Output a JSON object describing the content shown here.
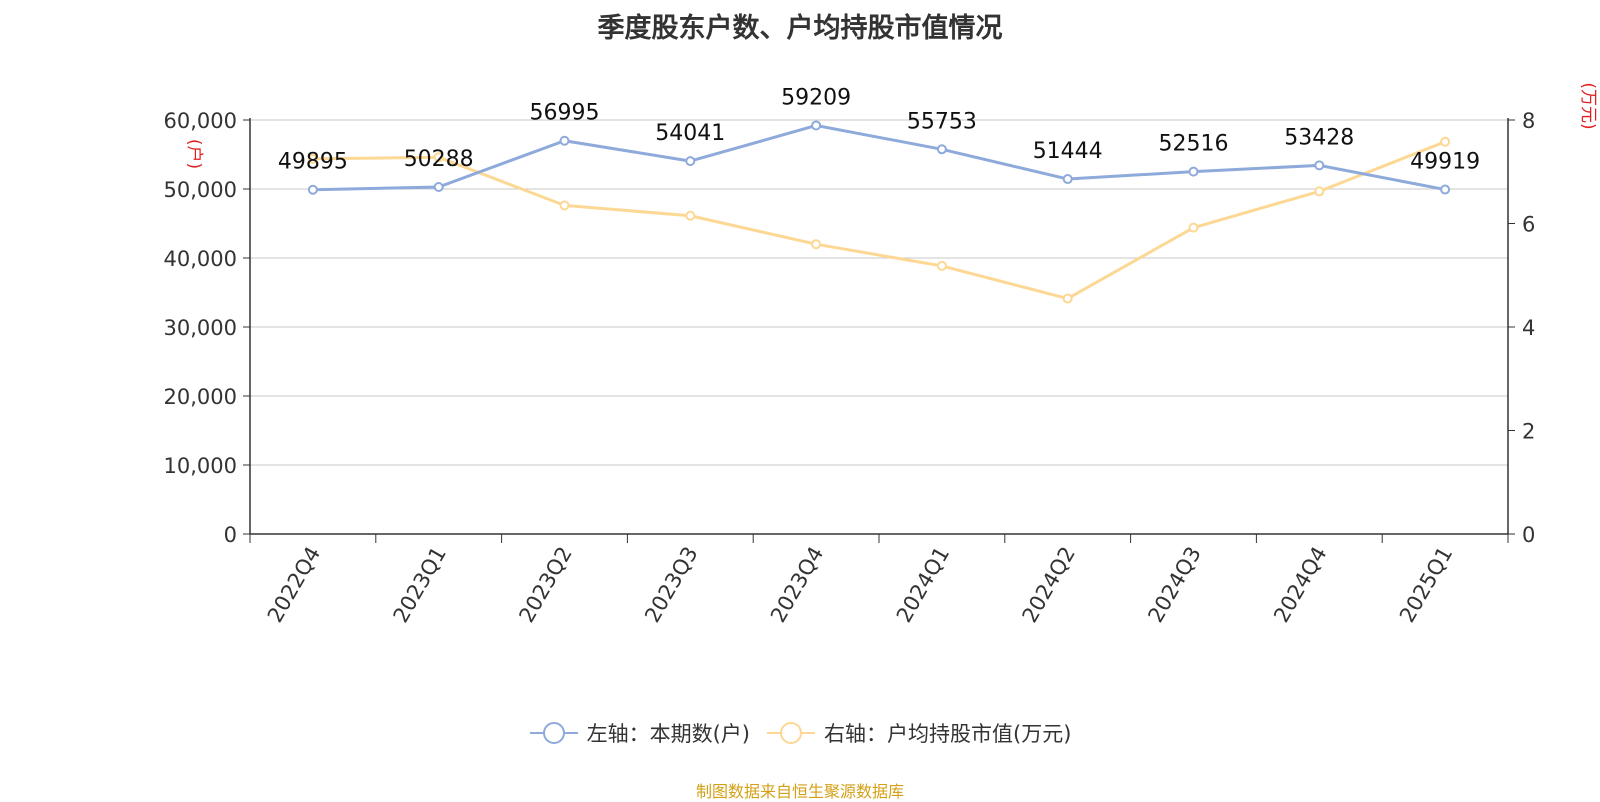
{
  "title": "季度股东户数、户均持股市值情况",
  "source": "制图数据来自恒生聚源数据库",
  "colors": {
    "left_series": "#8eaadb",
    "right_series": "#fcd894",
    "axis_unit": "#e02020",
    "text": "#333333",
    "grid": "#c8c8c8"
  },
  "chart_data": {
    "type": "line",
    "categories": [
      "2022Q4",
      "2023Q1",
      "2023Q2",
      "2023Q3",
      "2023Q4",
      "2024Q1",
      "2024Q2",
      "2024Q3",
      "2024Q4",
      "2025Q1"
    ],
    "series": [
      {
        "name": "左轴：本期数(户)",
        "axis": "left",
        "values": [
          49895,
          50288,
          56995,
          54041,
          59209,
          55753,
          51444,
          52516,
          53428,
          49919
        ]
      },
      {
        "name": "右轴：户均持股市值(万元)",
        "axis": "right",
        "values": [
          7.25,
          7.28,
          6.35,
          6.15,
          5.6,
          5.18,
          4.55,
          5.92,
          6.62,
          7.58
        ]
      }
    ],
    "left_axis": {
      "unit": "(户)",
      "ylim": [
        0,
        60000
      ],
      "ticks": [
        0,
        10000,
        20000,
        30000,
        40000,
        50000,
        60000
      ],
      "tick_labels": [
        "0",
        "10,000",
        "20,000",
        "30,000",
        "40,000",
        "50,000",
        "60,000"
      ]
    },
    "right_axis": {
      "unit": "(万元)",
      "ylim": [
        0,
        8
      ],
      "ticks": [
        0,
        2,
        4,
        6,
        8
      ],
      "tick_labels": [
        "0",
        "2",
        "4",
        "6",
        "8"
      ]
    },
    "data_labels": [
      "49895",
      "50288",
      "56995",
      "54041",
      "59209",
      "55753",
      "51444",
      "52516",
      "53428",
      "49919"
    ],
    "grid": true,
    "legend_position": "bottom"
  }
}
